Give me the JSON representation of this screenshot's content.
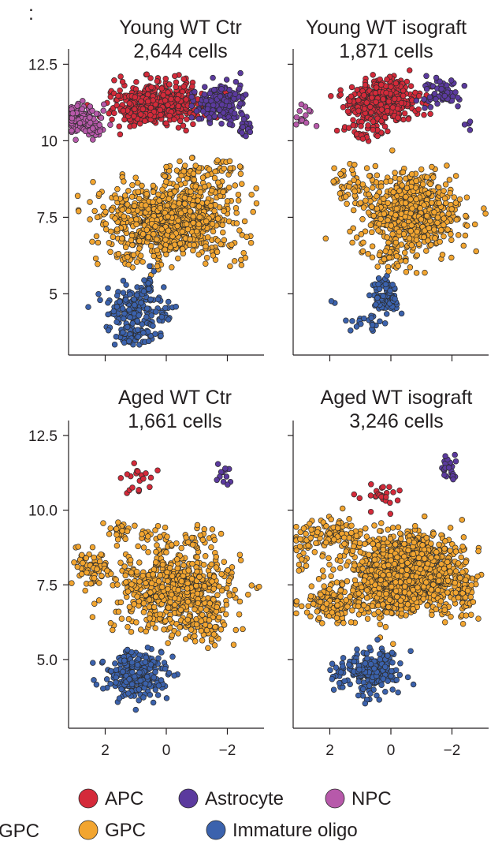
{
  "colors": {
    "APC": "#d42a3a",
    "Astrocyte": "#5b3a9e",
    "NPC": "#b759aa",
    "GPC": "#f2a530",
    "Immature oligo": "#3b62ad",
    "axis": "#231f20"
  },
  "chart_data": [
    {
      "type": "scatter",
      "panel": "young-wt-ctr",
      "title_line1": "Young WT Ctr",
      "title_line2": "2,644 cells",
      "x_reversed": true,
      "xlim": [
        3.2,
        -3.2
      ],
      "ylim": [
        3.0,
        13.0
      ],
      "xticks": [
        2,
        0,
        -2
      ],
      "xtick_labels": [],
      "yticks": [
        12.5,
        10,
        7.5,
        5
      ],
      "ytick_labels": [
        "12.5",
        "10",
        "7.5",
        "5"
      ],
      "clusters": [
        {
          "label": "GPC",
          "cx": -0.2,
          "cy": 7.4,
          "sx": 1.7,
          "sy": 1.0,
          "n": 900
        },
        {
          "label": "APC",
          "cx": 0.3,
          "cy": 11.2,
          "sx": 1.15,
          "sy": 0.55,
          "n": 520
        },
        {
          "label": "Astrocyte",
          "cx": -1.7,
          "cy": 11.2,
          "sx": 0.75,
          "sy": 0.5,
          "n": 170
        },
        {
          "label": "NPC",
          "cx": 2.8,
          "cy": 10.7,
          "sx": 0.45,
          "sy": 0.35,
          "n": 110
        },
        {
          "label": "Immature oligo",
          "cx": 1.1,
          "cy": 4.5,
          "sx": 0.75,
          "sy": 0.65,
          "n": 150
        },
        {
          "label": "Immature oligo",
          "cx": 0.6,
          "cy": 5.2,
          "sx": 0.15,
          "sy": 0.35,
          "n": 20
        },
        {
          "label": "Astrocyte",
          "cx": -2.6,
          "cy": 10.4,
          "sx": 0.2,
          "sy": 0.25,
          "n": 20
        },
        {
          "label": "NPC",
          "cx": 2.4,
          "cy": 10.4,
          "sx": 0.35,
          "sy": 0.3,
          "n": 30
        },
        {
          "label": "Immature oligo",
          "cx": 1.0,
          "cy": 3.6,
          "sx": 0.7,
          "sy": 0.25,
          "n": 40
        },
        {
          "label": "GPC",
          "cx": -1.0,
          "cy": 8.8,
          "sx": 1.0,
          "sy": 0.55,
          "n": 60
        },
        {
          "label": "NPC",
          "cx": 3.1,
          "cy": 10.9,
          "sx": 0.15,
          "sy": 0.25,
          "n": 6
        },
        {
          "label": "Immature oligo",
          "cx": 0.1,
          "cy": 4.2,
          "sx": 0.25,
          "sy": 0.35,
          "n": 15
        },
        {
          "label": "GPC",
          "cx": -1.9,
          "cy": 9.1,
          "sx": 0.25,
          "sy": 0.3,
          "n": 12
        },
        {
          "label": "GPC",
          "cx": 1.4,
          "cy": 6.2,
          "sx": 0.4,
          "sy": 0.25,
          "n": 15
        }
      ]
    },
    {
      "type": "scatter",
      "panel": "young-wt-isograft",
      "title_line1": "Young WT isograft",
      "title_line2": "1,871 cells",
      "x_reversed": true,
      "xlim": [
        3.2,
        -3.2
      ],
      "ylim": [
        3.0,
        13.0
      ],
      "xticks": [
        2,
        0,
        -2
      ],
      "xtick_labels": [],
      "yticks": [
        12.5,
        10,
        7.5,
        5
      ],
      "ytick_labels": [],
      "clusters": [
        {
          "label": "GPC",
          "cx": -0.6,
          "cy": 7.6,
          "sx": 1.3,
          "sy": 1.0,
          "n": 620
        },
        {
          "label": "APC",
          "cx": 0.3,
          "cy": 11.3,
          "sx": 0.95,
          "sy": 0.5,
          "n": 420
        },
        {
          "label": "Astrocyte",
          "cx": -1.6,
          "cy": 11.5,
          "sx": 0.5,
          "sy": 0.4,
          "n": 60
        },
        {
          "label": "Astrocyte",
          "cx": -2.5,
          "cy": 10.5,
          "sx": 0.15,
          "sy": 0.15,
          "n": 4
        },
        {
          "label": "NPC",
          "cx": 2.9,
          "cy": 10.8,
          "sx": 0.25,
          "sy": 0.3,
          "n": 14
        },
        {
          "label": "Immature oligo",
          "cx": 0.2,
          "cy": 4.9,
          "sx": 0.35,
          "sy": 0.6,
          "n": 90
        },
        {
          "label": "Immature oligo",
          "cx": 0.8,
          "cy": 4.0,
          "sx": 0.6,
          "sy": 0.25,
          "n": 20
        },
        {
          "label": "APC",
          "cx": 0.9,
          "cy": 10.3,
          "sx": 0.6,
          "sy": 0.25,
          "n": 30
        },
        {
          "label": "GPC",
          "cx": 1.3,
          "cy": 8.6,
          "sx": 0.7,
          "sy": 0.6,
          "n": 40
        },
        {
          "label": "Immature oligo",
          "cx": 2.0,
          "cy": 4.7,
          "sx": 0.1,
          "sy": 0.1,
          "n": 2
        },
        {
          "label": "GPC",
          "cx": -0.1,
          "cy": 6.2,
          "sx": 0.4,
          "sy": 0.3,
          "n": 30
        }
      ]
    },
    {
      "type": "scatter",
      "panel": "aged-wt-ctr",
      "title_line1": "Aged WT Ctr",
      "title_line2": "1,661 cells",
      "x_reversed": true,
      "xlim": [
        3.2,
        -3.2
      ],
      "ylim": [
        2.7,
        13.0
      ],
      "xticks": [
        2,
        0,
        -2
      ],
      "xtick_labels": [
        "2",
        "0",
        "−2"
      ],
      "yticks": [
        12.5,
        10.0,
        7.5,
        5.0
      ],
      "ytick_labels": [
        "12.5",
        "10.0",
        "7.5",
        "5.0"
      ],
      "clusters": [
        {
          "label": "GPC",
          "cx": -0.3,
          "cy": 7.3,
          "sx": 1.6,
          "sy": 1.05,
          "n": 650
        },
        {
          "label": "Immature oligo",
          "cx": 1.0,
          "cy": 4.5,
          "sx": 0.75,
          "sy": 0.65,
          "n": 280
        },
        {
          "label": "APC",
          "cx": 0.9,
          "cy": 11.1,
          "sx": 0.45,
          "sy": 0.45,
          "n": 20
        },
        {
          "label": "Astrocyte",
          "cx": -2.0,
          "cy": 11.0,
          "sx": 0.35,
          "sy": 0.5,
          "n": 12
        },
        {
          "label": "GPC",
          "cx": 2.4,
          "cy": 8.1,
          "sx": 0.55,
          "sy": 0.5,
          "n": 70
        },
        {
          "label": "GPC",
          "cx": -1.3,
          "cy": 6.0,
          "sx": 0.5,
          "sy": 0.4,
          "n": 40
        },
        {
          "label": "GPC",
          "cx": 1.4,
          "cy": 9.3,
          "sx": 0.5,
          "sy": 0.25,
          "n": 25
        },
        {
          "label": "GPC",
          "cx": -1.2,
          "cy": 9.1,
          "sx": 0.35,
          "sy": 0.35,
          "n": 15
        },
        {
          "label": "GPC",
          "cx": 0.0,
          "cy": 9.1,
          "sx": 0.9,
          "sy": 0.3,
          "n": 30
        }
      ]
    },
    {
      "type": "scatter",
      "panel": "aged-wt-isograft",
      "title_line1": "Aged WT isograft",
      "title_line2": "3,246 cells",
      "x_reversed": true,
      "xlim": [
        3.2,
        -3.2
      ],
      "ylim": [
        2.7,
        13.0
      ],
      "xticks": [
        2,
        0,
        -2
      ],
      "xtick_labels": [
        "2",
        "0",
        "−2"
      ],
      "yticks": [
        12.5,
        10.0,
        7.5,
        5.0
      ],
      "ytick_labels": [],
      "clusters": [
        {
          "label": "GPC",
          "cx": -0.5,
          "cy": 7.9,
          "sx": 1.3,
          "sy": 1.05,
          "n": 1300
        },
        {
          "label": "Immature oligo",
          "cx": 0.6,
          "cy": 4.6,
          "sx": 0.65,
          "sy": 0.6,
          "n": 220
        },
        {
          "label": "APC",
          "cx": 0.3,
          "cy": 10.5,
          "sx": 0.55,
          "sy": 0.35,
          "n": 25
        },
        {
          "label": "Astrocyte",
          "cx": -1.9,
          "cy": 11.4,
          "sx": 0.2,
          "sy": 0.4,
          "n": 25
        },
        {
          "label": "GPC",
          "cx": 1.9,
          "cy": 9.2,
          "sx": 0.9,
          "sy": 0.45,
          "n": 110
        },
        {
          "label": "GPC",
          "cx": 1.8,
          "cy": 6.9,
          "sx": 0.8,
          "sy": 0.6,
          "n": 150
        },
        {
          "label": "GPC",
          "cx": -2.4,
          "cy": 7.3,
          "sx": 0.25,
          "sy": 0.8,
          "n": 60
        },
        {
          "label": "GPC",
          "cx": 2.8,
          "cy": 8.5,
          "sx": 0.3,
          "sy": 0.5,
          "n": 20
        },
        {
          "label": "Immature oligo",
          "cx": 1.7,
          "cy": 4.5,
          "sx": 0.4,
          "sy": 0.35,
          "n": 20
        }
      ]
    }
  ],
  "legend": {
    "items": [
      {
        "label": "APC",
        "key": "APC"
      },
      {
        "label": "Astrocyte",
        "key": "Astrocyte"
      },
      {
        "label": "NPC",
        "key": "NPC"
      },
      {
        "label": "GPC",
        "key": "GPC"
      },
      {
        "label": "Immature oligo",
        "key": "Immature oligo"
      }
    ],
    "cropped_label": "GPC"
  }
}
